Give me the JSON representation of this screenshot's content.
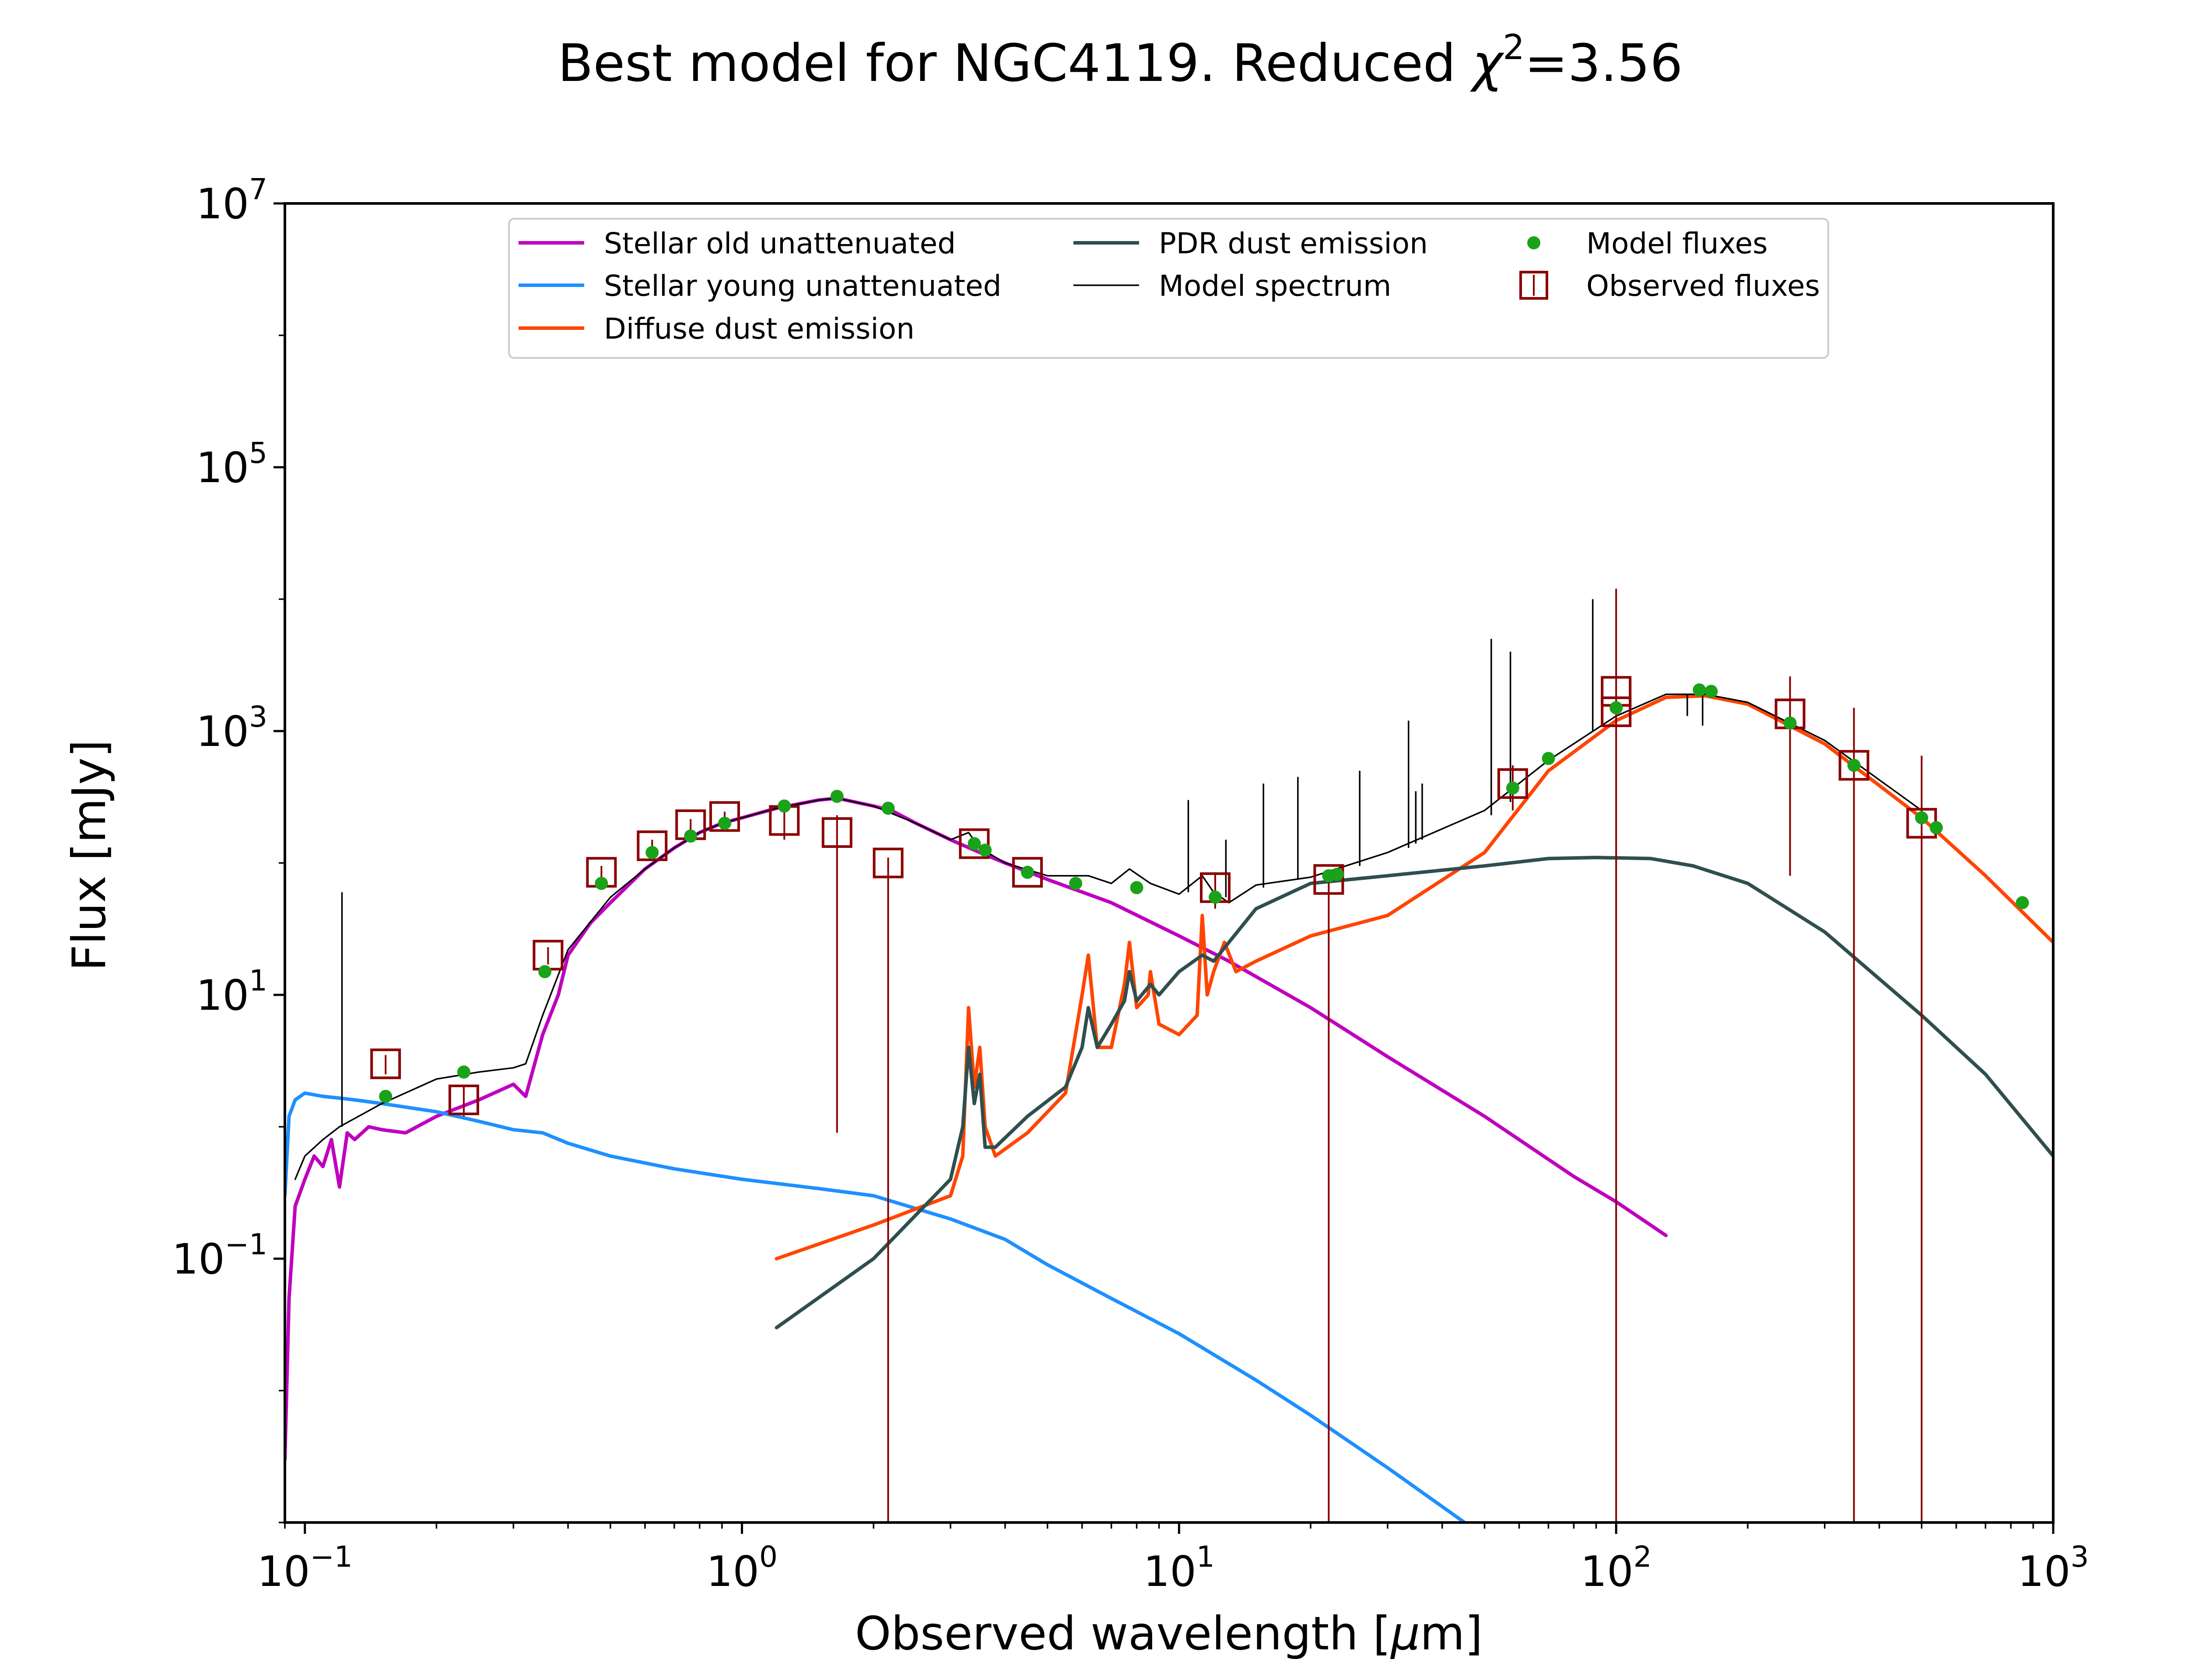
{
  "chart_data": {
    "type": "line",
    "title_prefix": "Best model for NGC4119. Reduced ",
    "title_chi": "χ",
    "title_sup": "2",
    "title_suffix": "=3.56",
    "xlabel_prefix": "Observed wavelength [",
    "xlabel_mu": "μ",
    "xlabel_suffix": "m]",
    "ylabel": "Flux [mJy]",
    "xscale": "log",
    "yscale": "log",
    "xlim": [
      0.09,
      1000
    ],
    "ylim": [
      0.001,
      10000000
    ],
    "grid": false,
    "legend_position": "top-center",
    "x_ticks": [
      {
        "value": 0.1,
        "base": "10",
        "exp": "−1"
      },
      {
        "value": 1,
        "base": "10",
        "exp": "0"
      },
      {
        "value": 10,
        "base": "10",
        "exp": "1"
      },
      {
        "value": 100,
        "base": "10",
        "exp": "2"
      },
      {
        "value": 1000,
        "base": "10",
        "exp": "3"
      }
    ],
    "y_ticks": [
      {
        "value": 0.1,
        "base": "10",
        "exp": "−1"
      },
      {
        "value": 10,
        "base": "10",
        "exp": "1"
      },
      {
        "value": 1000,
        "base": "10",
        "exp": "3"
      },
      {
        "value": 100000,
        "base": "10",
        "exp": "5"
      },
      {
        "value": 10000000,
        "base": "10",
        "exp": "7"
      }
    ],
    "legend": [
      {
        "label": "Stellar old unattenuated",
        "kind": "line",
        "color": "#bf00bf"
      },
      {
        "label": "Stellar young unattenuated",
        "kind": "line",
        "color": "#1e90ff"
      },
      {
        "label": "Diffuse dust emission",
        "kind": "line",
        "color": "#ff4500"
      },
      {
        "label": "PDR dust emission",
        "kind": "line",
        "color": "#2f4f4f"
      },
      {
        "label": "Model spectrum",
        "kind": "thin-line",
        "color": "#000000"
      },
      {
        "label": "Model fluxes",
        "kind": "dot",
        "color": "#1aa31a"
      },
      {
        "label": "Observed fluxes",
        "kind": "square",
        "color": "#8b0000"
      }
    ],
    "series": [
      {
        "name": "Stellar old unattenuated",
        "color": "#bf00bf",
        "points": [
          [
            0.09,
            0.003
          ],
          [
            0.092,
            0.05
          ],
          [
            0.095,
            0.25
          ],
          [
            0.1,
            0.4
          ],
          [
            0.105,
            0.6
          ],
          [
            0.11,
            0.5
          ],
          [
            0.115,
            0.8
          ],
          [
            0.12,
            0.35
          ],
          [
            0.125,
            0.9
          ],
          [
            0.13,
            0.8
          ],
          [
            0.14,
            1.0
          ],
          [
            0.15,
            0.95
          ],
          [
            0.17,
            0.9
          ],
          [
            0.2,
            1.2
          ],
          [
            0.25,
            1.6
          ],
          [
            0.3,
            2.1
          ],
          [
            0.32,
            1.7
          ],
          [
            0.35,
            5.0
          ],
          [
            0.38,
            10
          ],
          [
            0.4,
            20
          ],
          [
            0.45,
            35
          ],
          [
            0.5,
            50
          ],
          [
            0.6,
            90
          ],
          [
            0.7,
            130
          ],
          [
            0.8,
            170
          ],
          [
            0.9,
            200
          ],
          [
            1.0,
            220
          ],
          [
            1.2,
            260
          ],
          [
            1.5,
            300
          ],
          [
            1.65,
            310
          ],
          [
            2.0,
            270
          ],
          [
            2.2,
            250
          ],
          [
            2.5,
            200
          ],
          [
            3.0,
            150
          ],
          [
            3.5,
            120
          ],
          [
            4.0,
            100
          ],
          [
            5.0,
            75
          ],
          [
            7.0,
            50
          ],
          [
            10,
            28
          ],
          [
            13,
            18
          ],
          [
            20,
            8
          ],
          [
            30,
            3.4
          ],
          [
            50,
            1.2
          ],
          [
            80,
            0.42
          ],
          [
            100,
            0.27
          ],
          [
            130,
            0.15
          ]
        ]
      },
      {
        "name": "Stellar young unattenuated",
        "color": "#1e90ff",
        "points": [
          [
            0.09,
            0.3
          ],
          [
            0.092,
            1.2
          ],
          [
            0.095,
            1.6
          ],
          [
            0.1,
            1.8
          ],
          [
            0.11,
            1.7
          ],
          [
            0.12,
            1.65
          ],
          [
            0.13,
            1.6
          ],
          [
            0.15,
            1.5
          ],
          [
            0.2,
            1.3
          ],
          [
            0.25,
            1.1
          ],
          [
            0.3,
            0.95
          ],
          [
            0.35,
            0.9
          ],
          [
            0.4,
            0.75
          ],
          [
            0.5,
            0.6
          ],
          [
            0.7,
            0.48
          ],
          [
            1.0,
            0.4
          ],
          [
            1.5,
            0.34
          ],
          [
            2.0,
            0.3
          ],
          [
            2.5,
            0.24
          ],
          [
            3.0,
            0.2
          ],
          [
            4.0,
            0.14
          ],
          [
            5.0,
            0.09
          ],
          [
            7.0,
            0.05
          ],
          [
            10,
            0.027
          ],
          [
            15,
            0.012
          ],
          [
            20,
            0.0065
          ],
          [
            30,
            0.0026
          ],
          [
            45,
            0.001
          ]
        ]
      },
      {
        "name": "Diffuse dust emission",
        "color": "#ff4500",
        "points": [
          [
            1.2,
            0.1
          ],
          [
            2.0,
            0.18
          ],
          [
            3.0,
            0.3
          ],
          [
            3.2,
            0.6
          ],
          [
            3.3,
            8.0
          ],
          [
            3.4,
            2.0
          ],
          [
            3.5,
            4.0
          ],
          [
            3.6,
            1.0
          ],
          [
            3.8,
            0.6
          ],
          [
            4.5,
            0.9
          ],
          [
            5.5,
            1.8
          ],
          [
            6.0,
            10
          ],
          [
            6.2,
            20
          ],
          [
            6.5,
            4.0
          ],
          [
            7.0,
            4.0
          ],
          [
            7.5,
            12
          ],
          [
            7.7,
            25
          ],
          [
            8.0,
            8.0
          ],
          [
            8.5,
            10
          ],
          [
            8.6,
            15
          ],
          [
            9.0,
            6.0
          ],
          [
            10,
            5.0
          ],
          [
            11,
            7.0
          ],
          [
            11.3,
            40
          ],
          [
            11.6,
            10
          ],
          [
            12,
            15
          ],
          [
            12.7,
            25
          ],
          [
            13.5,
            15
          ],
          [
            15,
            18
          ],
          [
            20,
            28
          ],
          [
            30,
            40
          ],
          [
            50,
            120
          ],
          [
            70,
            500
          ],
          [
            100,
            1200
          ],
          [
            130,
            1800
          ],
          [
            160,
            1850
          ],
          [
            200,
            1600
          ],
          [
            300,
            800
          ],
          [
            500,
            220
          ],
          [
            700,
            80
          ],
          [
            1000,
            25
          ]
        ]
      },
      {
        "name": "PDR dust emission",
        "color": "#2f4f4f",
        "points": [
          [
            1.2,
            0.03
          ],
          [
            2.0,
            0.1
          ],
          [
            3.0,
            0.4
          ],
          [
            3.2,
            1.0
          ],
          [
            3.3,
            4.0
          ],
          [
            3.4,
            1.5
          ],
          [
            3.5,
            2.5
          ],
          [
            3.6,
            0.7
          ],
          [
            3.8,
            0.7
          ],
          [
            4.5,
            1.2
          ],
          [
            5.5,
            2.0
          ],
          [
            6.0,
            4.0
          ],
          [
            6.2,
            8.0
          ],
          [
            6.5,
            4.0
          ],
          [
            7.0,
            6.0
          ],
          [
            7.5,
            9.0
          ],
          [
            7.7,
            15
          ],
          [
            8.0,
            9.0
          ],
          [
            8.6,
            12
          ],
          [
            9.0,
            10
          ],
          [
            10,
            15
          ],
          [
            11.3,
            20
          ],
          [
            12,
            18
          ],
          [
            13,
            25
          ],
          [
            15,
            45
          ],
          [
            20,
            70
          ],
          [
            30,
            80
          ],
          [
            50,
            95
          ],
          [
            70,
            108
          ],
          [
            90,
            110
          ],
          [
            120,
            108
          ],
          [
            150,
            95
          ],
          [
            200,
            70
          ],
          [
            300,
            30
          ],
          [
            500,
            7.0
          ],
          [
            700,
            2.5
          ],
          [
            1000,
            0.6
          ]
        ]
      },
      {
        "name": "Model spectrum",
        "color": "#000000",
        "points": [
          [
            0.095,
            0.4
          ],
          [
            0.1,
            0.6
          ],
          [
            0.11,
            0.8
          ],
          [
            0.12,
            1.0
          ],
          [
            0.15,
            1.5
          ],
          [
            0.2,
            2.3
          ],
          [
            0.25,
            2.6
          ],
          [
            0.3,
            2.8
          ],
          [
            0.32,
            3.0
          ],
          [
            0.35,
            7.0
          ],
          [
            0.4,
            22
          ],
          [
            0.5,
            55
          ],
          [
            0.6,
            90
          ],
          [
            0.7,
            130
          ],
          [
            0.8,
            170
          ],
          [
            0.9,
            200
          ],
          [
            1.0,
            220
          ],
          [
            1.2,
            260
          ],
          [
            1.5,
            300
          ],
          [
            1.65,
            310
          ],
          [
            2.0,
            270
          ],
          [
            2.5,
            200
          ],
          [
            3.0,
            150
          ],
          [
            3.3,
            170
          ],
          [
            3.5,
            130
          ],
          [
            4.0,
            100
          ],
          [
            5.0,
            80
          ],
          [
            6.2,
            80
          ],
          [
            7.0,
            70
          ],
          [
            7.7,
            90
          ],
          [
            8.6,
            70
          ],
          [
            10,
            58
          ],
          [
            11.3,
            80
          ],
          [
            12,
            60
          ],
          [
            13,
            50
          ],
          [
            15,
            68
          ],
          [
            20,
            78
          ],
          [
            30,
            120
          ],
          [
            50,
            250
          ],
          [
            70,
            600
          ],
          [
            100,
            1300
          ],
          [
            130,
            1900
          ],
          [
            160,
            1900
          ],
          [
            200,
            1650
          ],
          [
            300,
            850
          ],
          [
            500,
            250
          ]
        ]
      }
    ],
    "emission_lines": [
      {
        "x": 0.1216,
        "y_peak": 60,
        "y_base": 1.0
      },
      {
        "x": 10.5,
        "y_peak": 300,
        "y_base": 60
      },
      {
        "x": 12.8,
        "y_peak": 150,
        "y_base": 55
      },
      {
        "x": 15.6,
        "y_peak": 400,
        "y_base": 65
      },
      {
        "x": 18.7,
        "y_peak": 450,
        "y_base": 75
      },
      {
        "x": 25.9,
        "y_peak": 500,
        "y_base": 95
      },
      {
        "x": 33.5,
        "y_peak": 1200,
        "y_base": 130
      },
      {
        "x": 34.8,
        "y_peak": 350,
        "y_base": 140
      },
      {
        "x": 36.0,
        "y_peak": 400,
        "y_base": 150
      },
      {
        "x": 51.8,
        "y_peak": 5000,
        "y_base": 230
      },
      {
        "x": 57.3,
        "y_peak": 4000,
        "y_base": 290
      },
      {
        "x": 88.4,
        "y_peak": 10000,
        "y_base": 1000
      },
      {
        "x": 145.5,
        "y_peak": 1300,
        "y_base": 1900
      },
      {
        "x": 157.7,
        "y_peak": 1100,
        "y_base": 1900
      }
    ],
    "model_fluxes": [
      {
        "x": 0.153,
        "y": 1.7
      },
      {
        "x": 0.231,
        "y": 2.6
      },
      {
        "x": 0.354,
        "y": 15
      },
      {
        "x": 0.477,
        "y": 70
      },
      {
        "x": 0.623,
        "y": 120
      },
      {
        "x": 0.763,
        "y": 160
      },
      {
        "x": 0.913,
        "y": 200
      },
      {
        "x": 1.25,
        "y": 270
      },
      {
        "x": 1.65,
        "y": 320
      },
      {
        "x": 2.16,
        "y": 260
      },
      {
        "x": 3.4,
        "y": 140
      },
      {
        "x": 3.6,
        "y": 125
      },
      {
        "x": 4.5,
        "y": 85
      },
      {
        "x": 5.8,
        "y": 70
      },
      {
        "x": 8.0,
        "y": 65
      },
      {
        "x": 12.1,
        "y": 55
      },
      {
        "x": 22.0,
        "y": 80
      },
      {
        "x": 23.0,
        "y": 82
      },
      {
        "x": 58.0,
        "y": 370
      },
      {
        "x": 70.0,
        "y": 620
      },
      {
        "x": 100.0,
        "y": 1500
      },
      {
        "x": 155.0,
        "y": 2050
      },
      {
        "x": 165.0,
        "y": 2000
      },
      {
        "x": 250.0,
        "y": 1150
      },
      {
        "x": 350.0,
        "y": 550
      },
      {
        "x": 500.0,
        "y": 220
      },
      {
        "x": 540.0,
        "y": 185
      },
      {
        "x": 850.0,
        "y": 50
      }
    ],
    "observed_fluxes": [
      {
        "x": 0.153,
        "y": 3.0,
        "err_lo": 2.5,
        "err_hi": 3.5
      },
      {
        "x": 0.231,
        "y": 1.6,
        "err_lo": 1.2,
        "err_hi": 2.0
      },
      {
        "x": 0.36,
        "y": 20,
        "err_lo": 17,
        "err_hi": 23
      },
      {
        "x": 0.477,
        "y": 85,
        "err_lo": 75,
        "err_hi": 95
      },
      {
        "x": 0.623,
        "y": 135,
        "err_lo": 120,
        "err_hi": 150
      },
      {
        "x": 0.763,
        "y": 195,
        "err_lo": 175,
        "err_hi": 215
      },
      {
        "x": 0.913,
        "y": 225,
        "err_lo": 205,
        "err_hi": 245
      },
      {
        "x": 1.25,
        "y": 210,
        "err_lo": 150,
        "err_hi": 270
      },
      {
        "x": 1.65,
        "y": 170,
        "err_lo": 0.9,
        "err_hi": 230
      },
      {
        "x": 2.16,
        "y": 100,
        "err_lo": 0.001,
        "err_hi": 110
      },
      {
        "x": 3.4,
        "y": 140,
        "err_lo": 125,
        "err_hi": 155
      },
      {
        "x": 4.5,
        "y": 85,
        "err_lo": 78,
        "err_hi": 92
      },
      {
        "x": 12.1,
        "y": 65,
        "err_lo": 45,
        "err_hi": 85
      },
      {
        "x": 22.0,
        "y": 75,
        "err_lo": 0.001,
        "err_hi": 85
      },
      {
        "x": 58.0,
        "y": 400,
        "err_lo": 250,
        "err_hi": 550
      },
      {
        "x": 100.0,
        "y": 2000,
        "err_lo": 0.001,
        "err_hi": 12000
      },
      {
        "x": 100.0,
        "y": 1400,
        "err_lo": 1300,
        "err_hi": 1500
      },
      {
        "x": 250.0,
        "y": 1350,
        "err_lo": 80,
        "err_hi": 2600
      },
      {
        "x": 350.0,
        "y": 550,
        "err_lo": 0.001,
        "err_hi": 1500
      },
      {
        "x": 500.0,
        "y": 200,
        "err_lo": 0.001,
        "err_hi": 650
      }
    ]
  }
}
